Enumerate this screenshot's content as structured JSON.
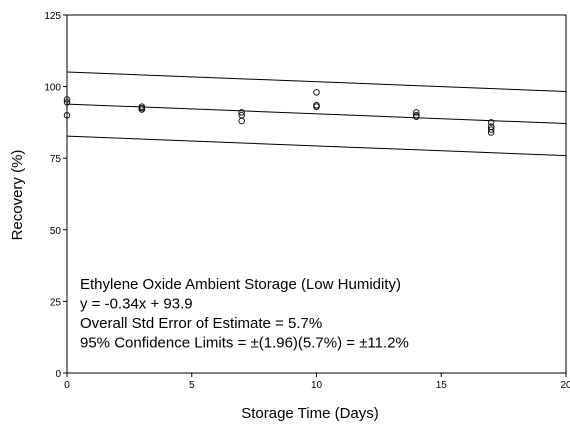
{
  "chart_data": {
    "type": "scatter",
    "xlabel": "Storage Time (Days)",
    "ylabel": "Recovery (%)",
    "xlim": [
      0,
      20
    ],
    "xticks": [
      0,
      5,
      10,
      15,
      20
    ],
    "ylim": [
      0,
      125
    ],
    "yticks": [
      0,
      25,
      50,
      75,
      100,
      125
    ],
    "color": "#000000",
    "series": [
      {
        "type": "scatter",
        "x": [
          0,
          0,
          0,
          3,
          3,
          3,
          7,
          7,
          7,
          10,
          10,
          10,
          14,
          14,
          14,
          17,
          17,
          17,
          17
        ],
        "values": [
          95.5,
          94.5,
          90,
          93,
          92.5,
          92,
          91,
          90,
          88,
          98,
          93.5,
          93,
          91,
          90,
          89.5,
          87.5,
          86,
          85,
          84
        ]
      },
      {
        "type": "line",
        "x": [
          0,
          20
        ],
        "values": [
          105.1,
          98.3
        ]
      },
      {
        "type": "line",
        "x": [
          0,
          20
        ],
        "values": [
          93.9,
          87.1
        ]
      },
      {
        "type": "line",
        "x": [
          0,
          20
        ],
        "values": [
          82.7,
          75.9
        ]
      }
    ],
    "annotations": [
      "Ethylene Oxide Ambient Storage (Low Humidity)",
      "y = -0.34x + 93.9",
      "Overall Std Error of Estimate = 5.7%",
      "95% Confidence Limits = ±(1.96)(5.7%) = ±11.2%"
    ]
  }
}
